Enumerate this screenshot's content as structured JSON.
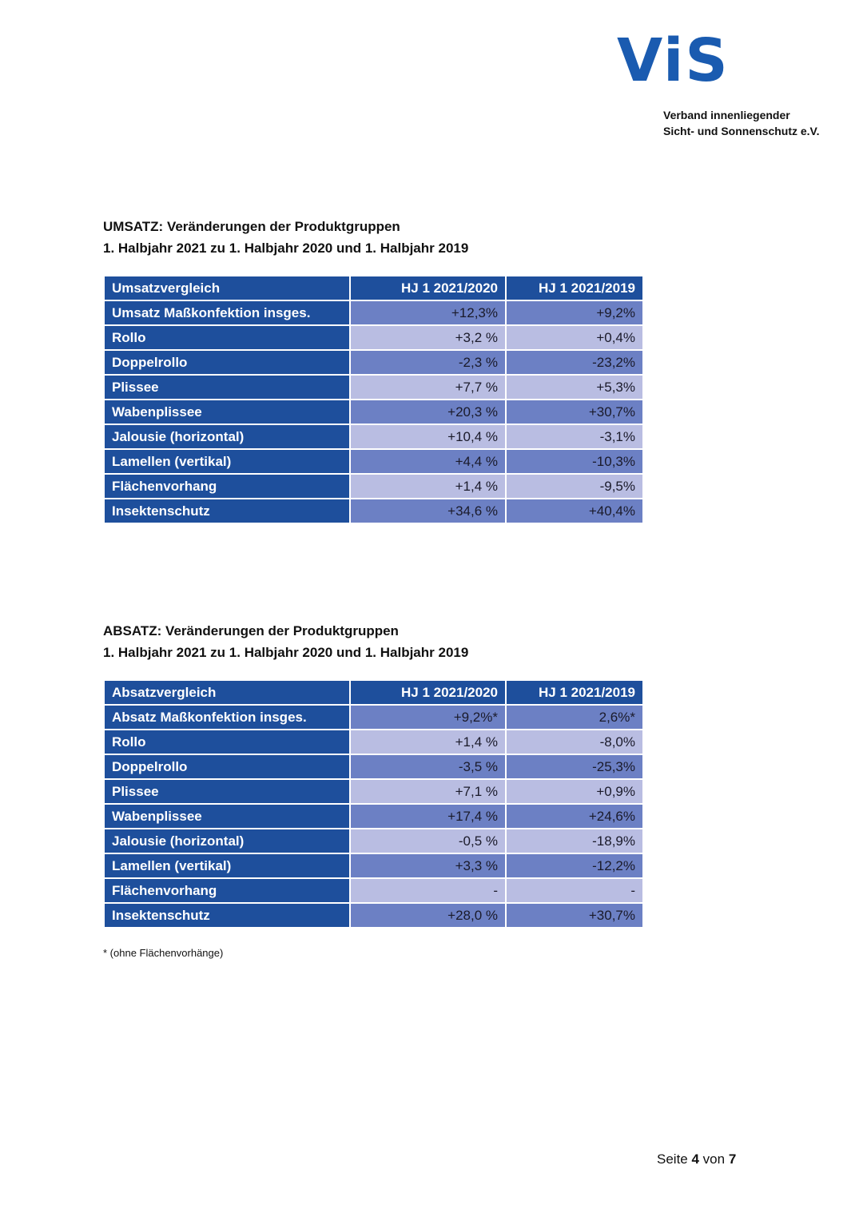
{
  "logo": {
    "mark": "ViS",
    "line1": "Verband innenliegender",
    "line2": "Sicht- und Sonnenschutz e.V.",
    "color": "#1a5bb0"
  },
  "umsatz": {
    "title": "UMSATZ: Veränderungen der Produktgruppen",
    "subtitle": "1. Halbjahr 2021 zu 1. Halbjahr 2020 und 1. Halbjahr 2019",
    "headers": [
      "Umsatzvergleich",
      "HJ 1 2021/2020",
      "HJ 1 2021/2019"
    ],
    "rows": [
      {
        "label": "Umsatz Maßkonfektion insges.",
        "v1": "+12,3%",
        "v2": "+9,2%"
      },
      {
        "label": "Rollo",
        "v1": "+3,2 %",
        "v2": "+0,4%"
      },
      {
        "label": "Doppelrollo",
        "v1": "-2,3 %",
        "v2": "-23,2%"
      },
      {
        "label": "Plissee",
        "v1": "+7,7 %",
        "v2": "+5,3%"
      },
      {
        "label": "Wabenplissee",
        "v1": "+20,3 %",
        "v2": "+30,7%"
      },
      {
        "label": "Jalousie (horizontal)",
        "v1": "+10,4 %",
        "v2": "-3,1%"
      },
      {
        "label": "Lamellen (vertikal)",
        "v1": "+4,4 %",
        "v2": "-10,3%"
      },
      {
        "label": "Flächenvorhang",
        "v1": "+1,4 %",
        "v2": "-9,5%"
      },
      {
        "label": "Insektenschutz",
        "v1": "+34,6 %",
        "v2": "+40,4%"
      }
    ]
  },
  "absatz": {
    "title": "ABSATZ: Veränderungen der Produktgruppen",
    "subtitle": "1. Halbjahr 2021 zu 1. Halbjahr 2020 und 1. Halbjahr 2019",
    "headers": [
      "Absatzvergleich",
      "HJ 1 2021/2020",
      "HJ 1 2021/2019"
    ],
    "rows": [
      {
        "label": "Absatz Maßkonfektion insges.",
        "v1": "+9,2%*",
        "v2": "2,6%*"
      },
      {
        "label": "Rollo",
        "v1": "+1,4 %",
        "v2": "-8,0%"
      },
      {
        "label": "Doppelrollo",
        "v1": "-3,5 %",
        "v2": "-25,3%"
      },
      {
        "label": "Plissee",
        "v1": "+7,1 %",
        "v2": "+0,9%"
      },
      {
        "label": "Wabenplissee",
        "v1": "+17,4 %",
        "v2": "+24,6%"
      },
      {
        "label": "Jalousie (horizontal)",
        "v1": "-0,5 %",
        "v2": "-18,9%"
      },
      {
        "label": "Lamellen (vertikal)",
        "v1": "+3,3 %",
        "v2": "-12,2%"
      },
      {
        "label": "Flächenvorhang",
        "v1": "-",
        "v2": "-"
      },
      {
        "label": "Insektenschutz",
        "v1": "+28,0 %",
        "v2": "+30,7%"
      }
    ],
    "footnote": "* (ohne Flächenvorhänge)"
  },
  "pager": {
    "prefix": "Seite ",
    "current": "4",
    "middle": " von ",
    "total": "7"
  }
}
